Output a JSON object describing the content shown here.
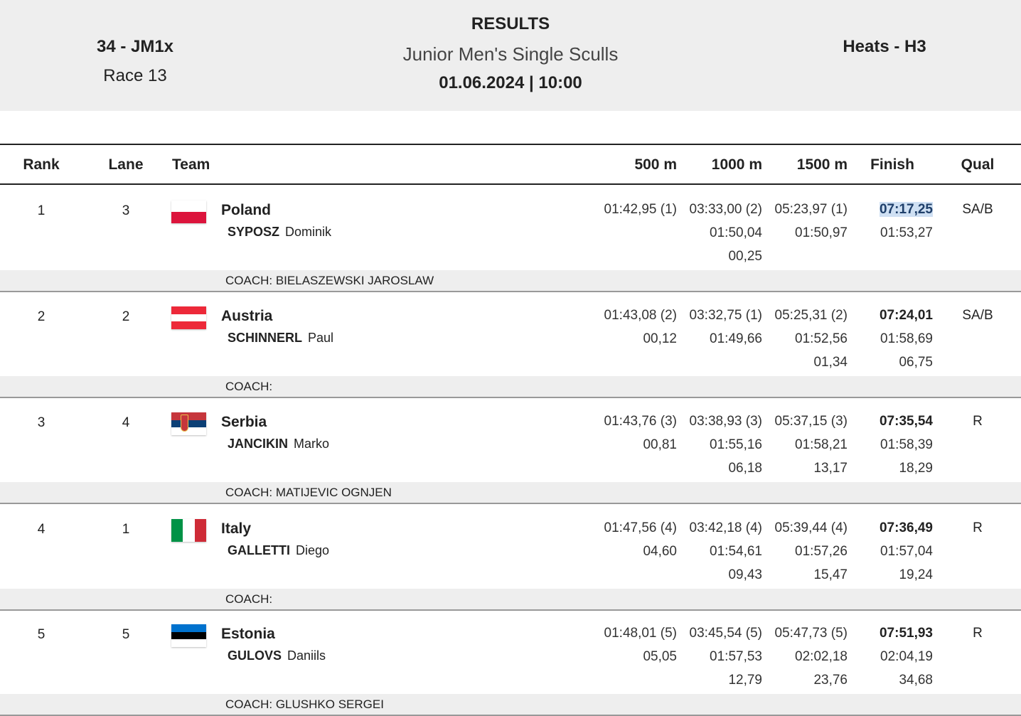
{
  "header": {
    "event_code": "34 - JM1x",
    "race_number": "Race 13",
    "title": "RESULTS",
    "event_name": "Junior Men's Single Sculls",
    "datetime": "01.06.2024 | 10:00",
    "phase": "Heats - H3"
  },
  "columns": {
    "rank": "Rank",
    "lane": "Lane",
    "team": "Team",
    "s500": "500 m",
    "s1000": "1000 m",
    "s1500": "1500 m",
    "finish": "Finish",
    "qual": "Qual"
  },
  "rows": [
    {
      "rank": "1",
      "lane": "3",
      "country": "Poland",
      "flag_icon": "poland-flag-icon",
      "surname": "SYPOSZ",
      "firstname": "Dominik",
      "s500": [
        "01:42,95 (1)",
        "",
        ""
      ],
      "s1000": [
        "03:33,00 (2)",
        "01:50,04",
        "00,25"
      ],
      "s1500": [
        "05:23,97 (1)",
        "01:50,97",
        ""
      ],
      "finish": [
        "07:17,25",
        "01:53,27",
        ""
      ],
      "qual": "SA/B",
      "coach": "COACH: BIELASZEWSKI JAROSLAW"
    },
    {
      "rank": "2",
      "lane": "2",
      "country": "Austria",
      "flag_icon": "austria-flag-icon",
      "surname": "SCHINNERL",
      "firstname": "Paul",
      "s500": [
        "01:43,08 (2)",
        "00,12",
        ""
      ],
      "s1000": [
        "03:32,75 (1)",
        "01:49,66",
        ""
      ],
      "s1500": [
        "05:25,31 (2)",
        "01:52,56",
        "01,34"
      ],
      "finish": [
        "07:24,01",
        "01:58,69",
        "06,75"
      ],
      "qual": "SA/B",
      "coach": "COACH:"
    },
    {
      "rank": "3",
      "lane": "4",
      "country": "Serbia",
      "flag_icon": "serbia-flag-icon",
      "surname": "JANCIKIN",
      "firstname": "Marko",
      "s500": [
        "01:43,76 (3)",
        "00,81",
        ""
      ],
      "s1000": [
        "03:38,93 (3)",
        "01:55,16",
        "06,18"
      ],
      "s1500": [
        "05:37,15 (3)",
        "01:58,21",
        "13,17"
      ],
      "finish": [
        "07:35,54",
        "01:58,39",
        "18,29"
      ],
      "qual": "R",
      "coach": "COACH: MATIJEVIC OGNJEN"
    },
    {
      "rank": "4",
      "lane": "1",
      "country": "Italy",
      "flag_icon": "italy-flag-icon",
      "surname": "GALLETTI",
      "firstname": "Diego",
      "s500": [
        "01:47,56 (4)",
        "04,60",
        ""
      ],
      "s1000": [
        "03:42,18 (4)",
        "01:54,61",
        "09,43"
      ],
      "s1500": [
        "05:39,44 (4)",
        "01:57,26",
        "15,47"
      ],
      "finish": [
        "07:36,49",
        "01:57,04",
        "19,24"
      ],
      "qual": "R",
      "coach": "COACH:"
    },
    {
      "rank": "5",
      "lane": "5",
      "country": "Estonia",
      "flag_icon": "estonia-flag-icon",
      "surname": "GULOVS",
      "firstname": "Daniils",
      "s500": [
        "01:48,01 (5)",
        "05,05",
        ""
      ],
      "s1000": [
        "03:45,54 (5)",
        "01:57,53",
        "12,79"
      ],
      "s1500": [
        "05:47,73 (5)",
        "02:02,18",
        "23,76"
      ],
      "finish": [
        "07:51,93",
        "02:04,19",
        "34,68"
      ],
      "qual": "R",
      "coach": "COACH: GLUSHKO SERGEI"
    }
  ],
  "flags": {
    "poland": [
      "#ffffff",
      "#dc143c"
    ],
    "austria": [
      "#ed2939",
      "#ffffff",
      "#ed2939"
    ],
    "serbia": [
      "#c6363c",
      "#0c4076",
      "#ffffff"
    ],
    "italy": [
      "#009246",
      "#ffffff",
      "#ce2b37"
    ],
    "estonia": [
      "#0072ce",
      "#000000",
      "#ffffff"
    ]
  },
  "highlight": {
    "color": "#cfe0f3"
  }
}
